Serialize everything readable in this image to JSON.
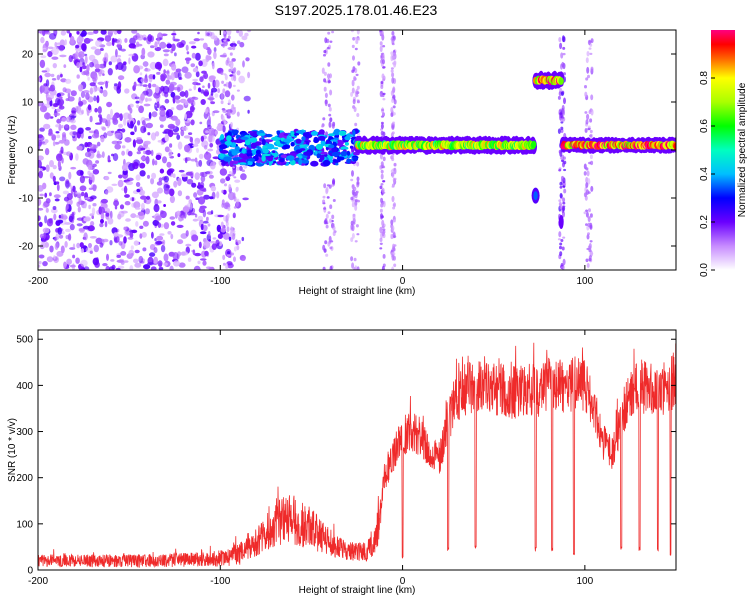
{
  "figure": {
    "title": "S197.2025.178.01.46.E23"
  },
  "chart_data": [
    {
      "type": "heatmap",
      "xlabel": "Height of straight line (km)",
      "ylabel": "Frequency (Hz)",
      "xlim": [
        -200,
        150
      ],
      "ylim": [
        -25,
        25
      ],
      "x_ticks": [
        -200,
        -100,
        0,
        100
      ],
      "y_ticks": [
        -20,
        -10,
        0,
        10,
        20
      ],
      "colorbar": {
        "label": "Normalized spectral amplitude",
        "range": [
          0,
          1
        ],
        "ticks": [
          0.0,
          0.2,
          0.4,
          0.6,
          0.8
        ],
        "colormap": "rainbow (white-purple-blue-cyan-green-yellow-red-magenta)"
      },
      "features": [
        {
          "name": "scattered noise",
          "x_range": [
            -200,
            -92
          ],
          "freq_range": [
            -25,
            25
          ],
          "amplitude": 0.1
        },
        {
          "name": "noisy band",
          "x_range": [
            -100,
            -25
          ],
          "freq_range": [
            -3,
            4
          ],
          "amplitude": 0.3
        },
        {
          "name": "main line",
          "x_range": [
            -25,
            72
          ],
          "freq_hz": 1,
          "amplitude": 0.75
        },
        {
          "name": "upper line",
          "x_range": [
            73,
            87
          ],
          "freq_hz": 14.5,
          "amplitude": 0.9
        },
        {
          "name": "lower blob",
          "x_range": [
            71,
            75
          ],
          "freq_hz": -9.5,
          "amplitude": 0.35
        },
        {
          "name": "right line",
          "x_range": [
            88,
            150
          ],
          "freq_hz": 1,
          "amplitude": 0.9
        }
      ]
    },
    {
      "type": "line",
      "xlabel": "Height of straight line (km)",
      "ylabel": "SNR (10 * v/v)",
      "xlim": [
        -200,
        150
      ],
      "ylim": [
        0,
        520
      ],
      "x_ticks": [
        -200,
        -100,
        0,
        100
      ],
      "y_ticks": [
        0,
        100,
        200,
        300,
        400,
        500
      ],
      "color": "#ef2a2a",
      "series": [
        {
          "x": [
            -200,
            -180,
            -160,
            -140,
            -120,
            -100,
            -90,
            -80,
            -70,
            -60,
            -50,
            -40,
            -30,
            -20,
            -15,
            -10,
            -5,
            0,
            5,
            10,
            15,
            20,
            25,
            30,
            35,
            40,
            45,
            50,
            55,
            60,
            65,
            70,
            75,
            80,
            85,
            90,
            95,
            100,
            105,
            110,
            115,
            120,
            125,
            130,
            135,
            140,
            145,
            150
          ],
          "values": [
            20,
            20,
            20,
            20,
            22,
            25,
            35,
            60,
            100,
            110,
            90,
            60,
            40,
            40,
            60,
            200,
            250,
            290,
            300,
            290,
            250,
            240,
            320,
            380,
            390,
            400,
            405,
            395,
            390,
            385,
            385,
            390,
            390,
            400,
            400,
            390,
            410,
            400,
            340,
            280,
            250,
            330,
            390,
            400,
            390,
            395,
            390,
            420
          ]
        }
      ],
      "dips": [
        {
          "x": -20,
          "value": 15
        },
        {
          "x": 0,
          "value": 20
        },
        {
          "x": 25,
          "value": 40
        },
        {
          "x": 40,
          "value": 45
        },
        {
          "x": 73,
          "value": 40
        },
        {
          "x": 82,
          "value": 40
        },
        {
          "x": 94,
          "value": 30
        },
        {
          "x": 120,
          "value": 40
        },
        {
          "x": 130,
          "value": 40
        },
        {
          "x": 140,
          "value": 40
        },
        {
          "x": 147,
          "value": 30
        }
      ]
    }
  ]
}
